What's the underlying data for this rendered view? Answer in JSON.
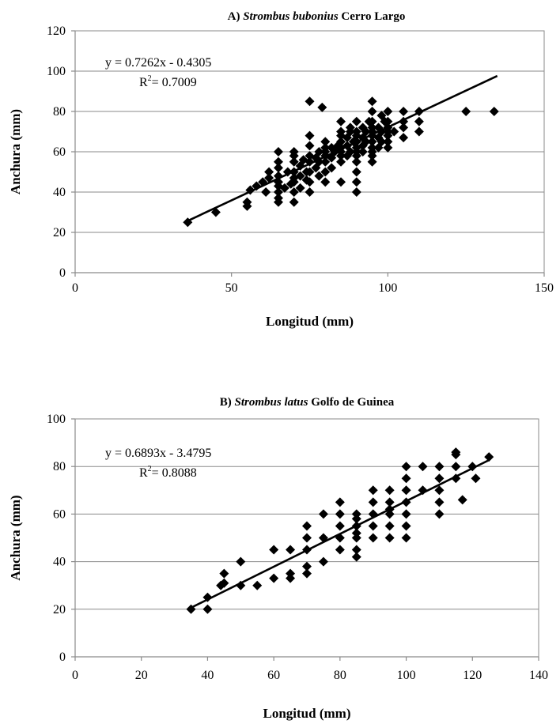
{
  "chart_data": [
    {
      "type": "scatter",
      "title_prefix": "A) ",
      "title_italic": "Strombus bubonius",
      "title_suffix": " Cerro Largo",
      "xlabel": "Longitud (mm)",
      "ylabel": "Anchura (mm)",
      "xlim": [
        0,
        150
      ],
      "ylim": [
        0,
        120
      ],
      "xticks": [
        0,
        50,
        100,
        150
      ],
      "yticks": [
        0,
        20,
        40,
        60,
        80,
        100,
        120
      ],
      "grid": true,
      "equation": "y = 0.7262x - 0.4305",
      "r2_label": "R",
      "r2_value": "= 0.7009",
      "trendline": {
        "slope": 0.7262,
        "intercept": -0.4305,
        "x_range": [
          35,
          135
        ]
      },
      "points": [
        [
          36,
          25
        ],
        [
          45,
          30
        ],
        [
          55,
          33
        ],
        [
          55,
          35
        ],
        [
          56,
          41
        ],
        [
          58,
          43
        ],
        [
          60,
          45
        ],
        [
          61,
          40
        ],
        [
          62,
          47
        ],
        [
          62,
          50
        ],
        [
          65,
          35
        ],
        [
          65,
          37
        ],
        [
          65,
          40
        ],
        [
          65,
          43
        ],
        [
          65,
          45
        ],
        [
          65,
          48
        ],
        [
          65,
          52
        ],
        [
          65,
          55
        ],
        [
          65,
          60
        ],
        [
          67,
          42
        ],
        [
          68,
          50
        ],
        [
          69,
          44
        ],
        [
          70,
          35
        ],
        [
          70,
          40
        ],
        [
          70,
          45
        ],
        [
          70,
          47
        ],
        [
          70,
          50
        ],
        [
          70,
          55
        ],
        [
          70,
          58
        ],
        [
          70,
          60
        ],
        [
          72,
          42
        ],
        [
          72,
          48
        ],
        [
          72,
          53
        ],
        [
          73,
          56
        ],
        [
          74,
          46
        ],
        [
          74,
          50
        ],
        [
          75,
          40
        ],
        [
          75,
          45
        ],
        [
          75,
          50
        ],
        [
          75,
          55
        ],
        [
          75,
          58
        ],
        [
          75,
          63
        ],
        [
          75,
          68
        ],
        [
          75,
          85
        ],
        [
          77,
          52
        ],
        [
          77,
          57
        ],
        [
          78,
          48
        ],
        [
          78,
          60
        ],
        [
          78,
          55
        ],
        [
          79,
          82
        ],
        [
          80,
          45
        ],
        [
          80,
          50
        ],
        [
          80,
          55
        ],
        [
          80,
          58
        ],
        [
          80,
          60
        ],
        [
          80,
          62
        ],
        [
          80,
          65
        ],
        [
          82,
          52
        ],
        [
          82,
          57
        ],
        [
          82,
          62
        ],
        [
          83,
          60
        ],
        [
          84,
          63
        ],
        [
          85,
          45
        ],
        [
          85,
          55
        ],
        [
          85,
          58
        ],
        [
          85,
          60
        ],
        [
          85,
          62
        ],
        [
          85,
          65
        ],
        [
          85,
          68
        ],
        [
          85,
          70
        ],
        [
          85,
          75
        ],
        [
          87,
          58
        ],
        [
          87,
          63
        ],
        [
          87,
          67
        ],
        [
          88,
          60
        ],
        [
          88,
          70
        ],
        [
          88,
          72
        ],
        [
          89,
          65
        ],
        [
          90,
          40
        ],
        [
          90,
          45
        ],
        [
          90,
          50
        ],
        [
          90,
          55
        ],
        [
          90,
          58
        ],
        [
          90,
          60
        ],
        [
          90,
          62
        ],
        [
          90,
          65
        ],
        [
          90,
          68
        ],
        [
          90,
          70
        ],
        [
          90,
          75
        ],
        [
          92,
          60
        ],
        [
          92,
          63
        ],
        [
          92,
          67
        ],
        [
          92,
          72
        ],
        [
          93,
          65
        ],
        [
          93,
          70
        ],
        [
          94,
          75
        ],
        [
          95,
          55
        ],
        [
          95,
          58
        ],
        [
          95,
          60
        ],
        [
          95,
          62
        ],
        [
          95,
          65
        ],
        [
          95,
          68
        ],
        [
          95,
          70
        ],
        [
          95,
          72
        ],
        [
          95,
          75
        ],
        [
          95,
          80
        ],
        [
          95,
          85
        ],
        [
          97,
          62
        ],
        [
          97,
          67
        ],
        [
          97,
          72
        ],
        [
          98,
          65
        ],
        [
          98,
          70
        ],
        [
          98,
          78
        ],
        [
          99,
          75
        ],
        [
          100,
          62
        ],
        [
          100,
          65
        ],
        [
          100,
          68
        ],
        [
          100,
          70
        ],
        [
          100,
          72
        ],
        [
          100,
          75
        ],
        [
          100,
          80
        ],
        [
          102,
          70
        ],
        [
          105,
          67
        ],
        [
          105,
          72
        ],
        [
          105,
          75
        ],
        [
          105,
          80
        ],
        [
          110,
          70
        ],
        [
          110,
          75
        ],
        [
          110,
          80
        ],
        [
          125,
          80
        ],
        [
          134,
          80
        ]
      ]
    },
    {
      "type": "scatter",
      "title_prefix": "B) ",
      "title_italic": "Strombus latus",
      "title_suffix": " Golfo de Guinea",
      "xlabel": "Longitud (mm)",
      "ylabel": "Anchura (mm)",
      "xlim": [
        0,
        140
      ],
      "ylim": [
        0,
        100
      ],
      "xticks": [
        0,
        20,
        40,
        60,
        80,
        100,
        120,
        140
      ],
      "yticks": [
        0,
        20,
        40,
        60,
        80,
        100
      ],
      "grid": true,
      "equation": "y = 0.6893x - 3.4795",
      "r2_label": "R",
      "r2_value": "= 0.8088",
      "trendline": {
        "slope": 0.6893,
        "intercept": -3.4795,
        "x_range": [
          35,
          125
        ]
      },
      "points": [
        [
          35,
          20
        ],
        [
          40,
          20
        ],
        [
          40,
          25
        ],
        [
          44,
          30
        ],
        [
          45,
          31
        ],
        [
          45,
          35
        ],
        [
          50,
          30
        ],
        [
          50,
          40
        ],
        [
          55,
          30
        ],
        [
          60,
          33
        ],
        [
          60,
          45
        ],
        [
          65,
          33
        ],
        [
          65,
          35
        ],
        [
          65,
          45
        ],
        [
          70,
          35
        ],
        [
          70,
          38
        ],
        [
          70,
          45
        ],
        [
          70,
          50
        ],
        [
          70,
          55
        ],
        [
          75,
          40
        ],
        [
          75,
          50
        ],
        [
          75,
          60
        ],
        [
          80,
          45
        ],
        [
          80,
          50
        ],
        [
          80,
          55
        ],
        [
          80,
          60
        ],
        [
          80,
          65
        ],
        [
          85,
          42
        ],
        [
          85,
          45
        ],
        [
          85,
          50
        ],
        [
          85,
          52
        ],
        [
          85,
          55
        ],
        [
          85,
          58
        ],
        [
          85,
          60
        ],
        [
          90,
          50
        ],
        [
          90,
          55
        ],
        [
          90,
          60
        ],
        [
          90,
          65
        ],
        [
          90,
          70
        ],
        [
          95,
          50
        ],
        [
          95,
          55
        ],
        [
          95,
          60
        ],
        [
          95,
          62
        ],
        [
          95,
          65
        ],
        [
          95,
          70
        ],
        [
          100,
          50
        ],
        [
          100,
          55
        ],
        [
          100,
          60
        ],
        [
          100,
          65
        ],
        [
          100,
          70
        ],
        [
          100,
          75
        ],
        [
          100,
          80
        ],
        [
          105,
          70
        ],
        [
          105,
          80
        ],
        [
          110,
          60
        ],
        [
          110,
          65
        ],
        [
          110,
          70
        ],
        [
          110,
          75
        ],
        [
          110,
          80
        ],
        [
          115,
          75
        ],
        [
          115,
          80
        ],
        [
          115,
          85
        ],
        [
          115,
          86
        ],
        [
          117,
          66
        ],
        [
          120,
          80
        ],
        [
          121,
          75
        ],
        [
          125,
          84
        ]
      ]
    }
  ]
}
